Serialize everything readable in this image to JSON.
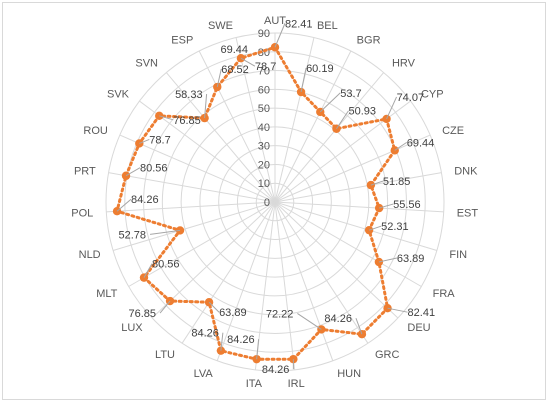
{
  "chart_data": {
    "type": "radar",
    "title": "",
    "rlim": [
      0,
      90
    ],
    "ticks": [
      "0",
      "10",
      "20",
      "30",
      "40",
      "50",
      "60",
      "70",
      "80",
      "90"
    ],
    "categories": [
      "AUT",
      "BEL",
      "BGR",
      "HRV",
      "CYP",
      "CZE",
      "DNK",
      "EST",
      "FIN",
      "FRA",
      "DEU",
      "GRC",
      "HUN",
      "IRL",
      "ITA",
      "LVA",
      "LTU",
      "LUX",
      "MLT",
      "NLD",
      "POL",
      "PRT",
      "ROU",
      "SVK",
      "SVN",
      "ESP",
      "SWE"
    ],
    "series": [
      {
        "color": "#ed7d31",
        "values": [
          82.41,
          60.19,
          53.7,
          50.93,
          74.07,
          69.44,
          51.85,
          55.56,
          52.31,
          63.89,
          82.41,
          84.26,
          72.22,
          84.26,
          84.26,
          84.26,
          63.89,
          76.85,
          80.56,
          52.78,
          84.26,
          80.56,
          78.7,
          76.85,
          58.33,
          68.52,
          78.7
        ],
        "labels": [
          "82.41",
          "60.19",
          "53.7",
          "50.93",
          "74.07",
          "69.44",
          "51.85",
          "55.56",
          "52.31",
          "63.89",
          "82.41",
          "84.26",
          "72.22",
          "84.26",
          "84.26",
          "84.26",
          "63.89",
          "76.85",
          "80.56",
          "52.78",
          "84.26",
          "80.56",
          "78.7",
          "76.85",
          "58.33",
          "68.52",
          "78.7"
        ]
      }
    ],
    "grid": true,
    "legend": "none"
  },
  "extra_labels": [
    "69.44"
  ]
}
